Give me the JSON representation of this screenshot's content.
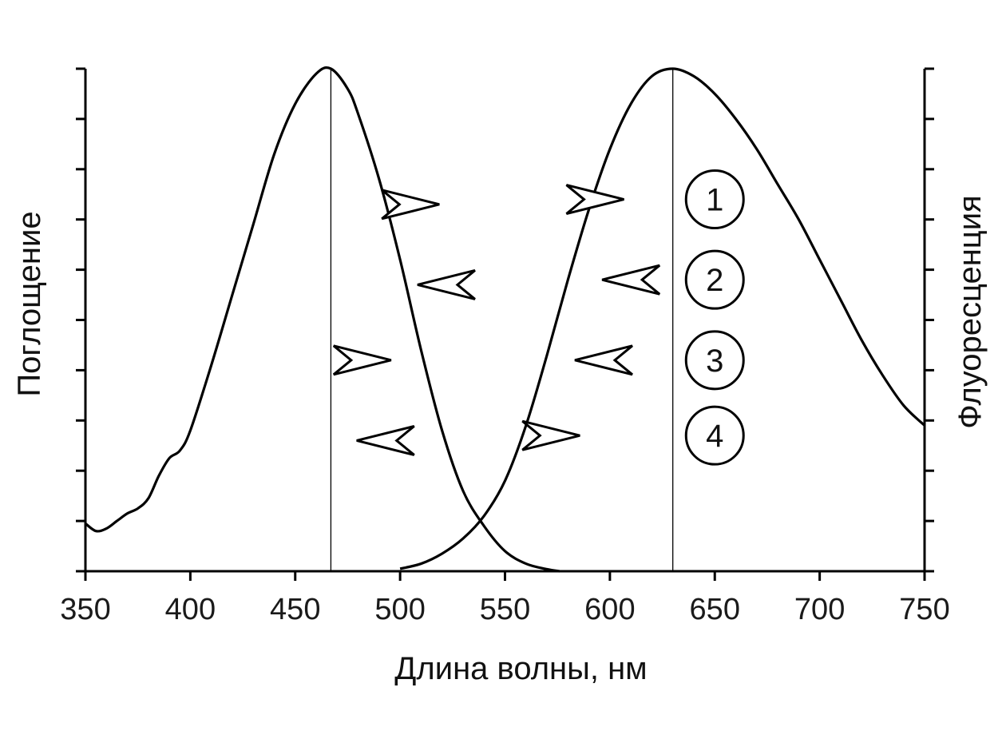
{
  "chart_data": {
    "type": "line",
    "xlabel": "Длина волны, нм",
    "ylabel_left": "Поглощение",
    "ylabel_right": "Флуоресценция",
    "xlim": [
      350,
      750
    ],
    "ylim": [
      0,
      1
    ],
    "x_ticks": [
      350,
      400,
      450,
      500,
      550,
      600,
      650,
      700,
      750
    ],
    "y_tick_count": 11,
    "y_ticks_labeled": false,
    "grid": false,
    "legend": "none",
    "series": [
      {
        "role": "absorption",
        "color": "#000000",
        "x": [
          350,
          355,
          360,
          365,
          370,
          375,
          380,
          385,
          390,
          395,
          400,
          410,
          420,
          430,
          440,
          450,
          460,
          467,
          475,
          480,
          490,
          500,
          510,
          520,
          530,
          540,
          550,
          560,
          570,
          576
        ],
        "y": [
          0.095,
          0.08,
          0.085,
          0.1,
          0.115,
          0.125,
          0.145,
          0.19,
          0.225,
          0.24,
          0.28,
          0.41,
          0.55,
          0.69,
          0.83,
          0.93,
          0.99,
          1.0,
          0.96,
          0.91,
          0.78,
          0.62,
          0.44,
          0.28,
          0.16,
          0.09,
          0.04,
          0.015,
          0.004,
          0.0
        ]
      },
      {
        "role": "fluorescence",
        "color": "#000000",
        "x": [
          500,
          510,
          520,
          530,
          540,
          550,
          560,
          570,
          580,
          590,
          600,
          610,
          620,
          630,
          640,
          650,
          660,
          670,
          680,
          690,
          700,
          710,
          720,
          730,
          740,
          750
        ],
        "y": [
          0.005,
          0.015,
          0.035,
          0.065,
          0.11,
          0.18,
          0.29,
          0.43,
          0.58,
          0.72,
          0.84,
          0.93,
          0.985,
          1.0,
          0.985,
          0.95,
          0.9,
          0.84,
          0.77,
          0.7,
          0.62,
          0.54,
          0.46,
          0.39,
          0.33,
          0.29
        ]
      }
    ],
    "vertical_lines": [
      467,
      630
    ],
    "annotations": [
      {
        "label": "1",
        "at": [
          650,
          0.74
        ],
        "arrows": [
          {
            "x": 505,
            "y": 0.73,
            "dir": "right"
          },
          {
            "x": 593,
            "y": 0.74,
            "dir": "right"
          }
        ]
      },
      {
        "label": "2",
        "at": [
          650,
          0.58
        ],
        "arrows": [
          {
            "x": 522,
            "y": 0.57,
            "dir": "left"
          },
          {
            "x": 610,
            "y": 0.58,
            "dir": "left"
          }
        ]
      },
      {
        "label": "3",
        "at": [
          650,
          0.42
        ],
        "arrows": [
          {
            "x": 482,
            "y": 0.42,
            "dir": "right"
          },
          {
            "x": 597,
            "y": 0.42,
            "dir": "left"
          }
        ]
      },
      {
        "label": "4",
        "at": [
          650,
          0.27
        ],
        "arrows": [
          {
            "x": 493,
            "y": 0.26,
            "dir": "left"
          },
          {
            "x": 572,
            "y": 0.27,
            "dir": "right"
          }
        ]
      }
    ]
  }
}
